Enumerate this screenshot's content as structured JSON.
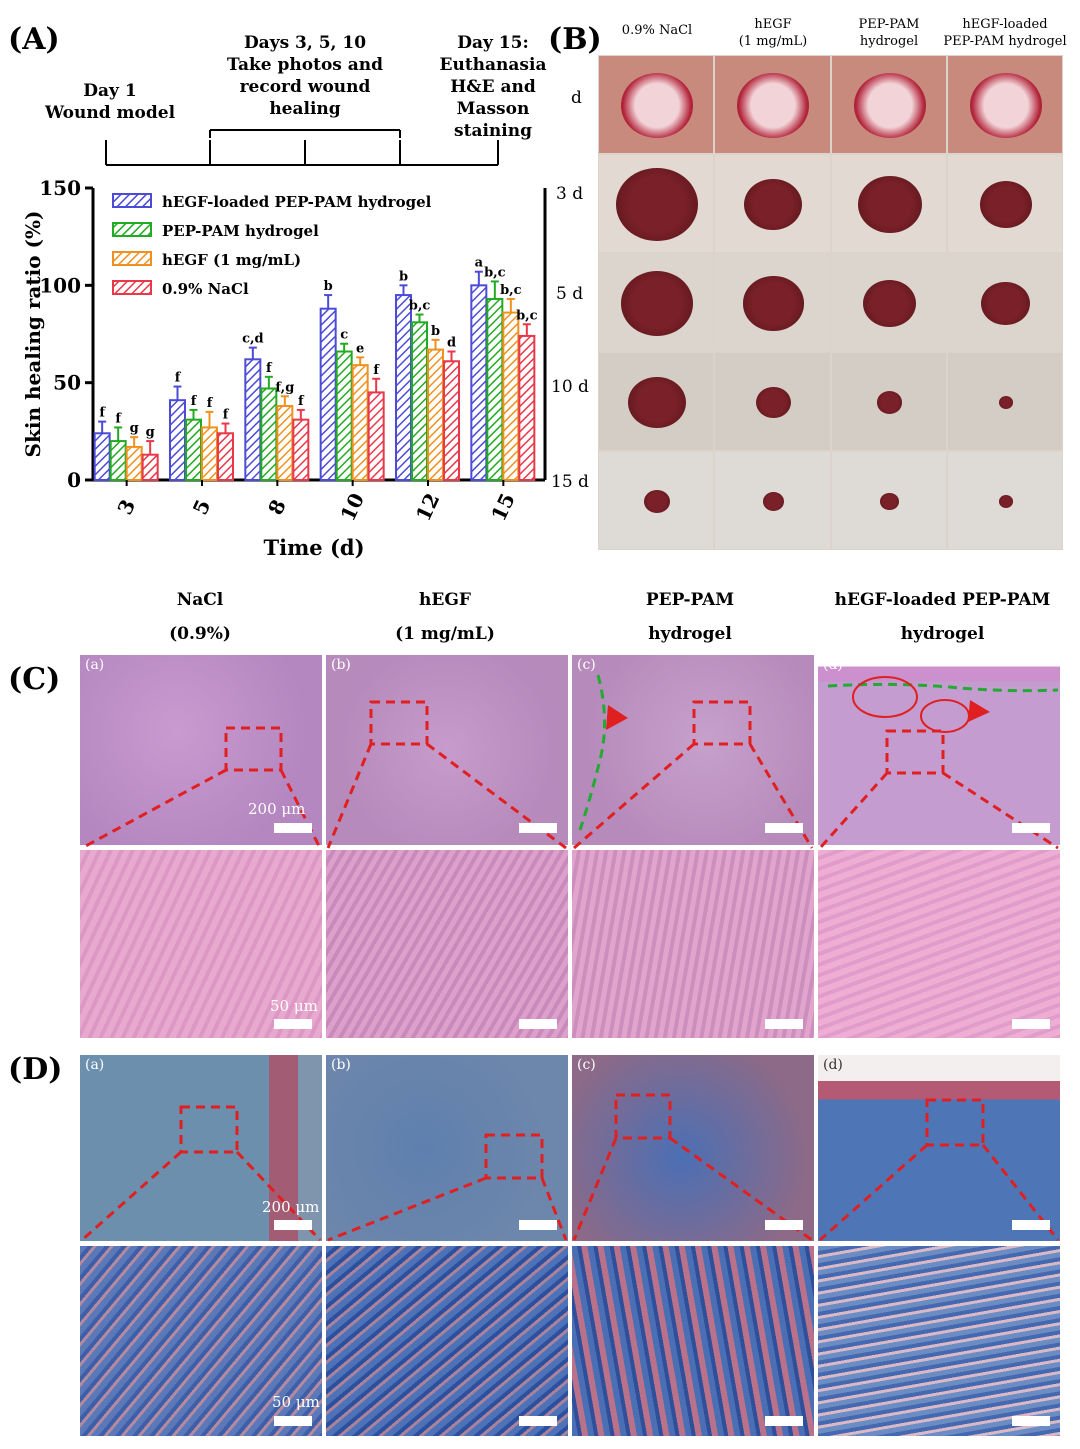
{
  "panel_labels": {
    "a": "(A)",
    "b": "(B)",
    "c": "(C)",
    "d": "(D)"
  },
  "timeline": {
    "day1": [
      "Day 1",
      "Wound model"
    ],
    "days_mid": [
      "Days 3, 5, 10",
      "Take photos and",
      "record wound",
      "healing"
    ],
    "day15": [
      "Day 15:",
      "Euthanasia",
      "H&E and",
      "Masson staining"
    ]
  },
  "chart_data": {
    "type": "bar",
    "xlabel": "Time (d)",
    "ylabel": "Skin healing ratio (%)",
    "ylim": [
      0,
      150
    ],
    "yticks": [
      "0",
      "50",
      "100",
      "150"
    ],
    "categories": [
      "3",
      "5",
      "8",
      "10",
      "12",
      "15"
    ],
    "series": [
      {
        "name": "hEGF-loaded PEP-PAM hydrogel",
        "color": "#4b4bd8",
        "values": [
          24,
          41,
          62,
          88,
          95,
          100
        ],
        "errors": [
          6,
          7,
          6,
          7,
          5,
          7
        ],
        "letters": [
          "f",
          "f",
          "c,d",
          "b",
          "b",
          "a"
        ]
      },
      {
        "name": "PEP-PAM hydrogel",
        "color": "#22aa22",
        "values": [
          20,
          31,
          47,
          66,
          81,
          93
        ],
        "errors": [
          7,
          5,
          6,
          4,
          4,
          9
        ],
        "letters": [
          "f",
          "f",
          "f",
          "c",
          "b,c",
          "b,c"
        ]
      },
      {
        "name": "hEGF (1 mg/mL)",
        "color": "#f0901e",
        "values": [
          17,
          27,
          38,
          59,
          67,
          86
        ],
        "errors": [
          5,
          8,
          5,
          4,
          5,
          7
        ],
        "letters": [
          "g",
          "f",
          "f,g",
          "e",
          "b",
          "b,c"
        ]
      },
      {
        "name": "0.9%  NaCl",
        "color": "#e8384a",
        "values": [
          13,
          24,
          31,
          45,
          61,
          74
        ],
        "errors": [
          7,
          5,
          5,
          7,
          5,
          6
        ],
        "letters": [
          "g",
          "f",
          "f",
          "f",
          "d",
          "b,c"
        ]
      }
    ]
  },
  "panel_b": {
    "columns": [
      [
        "0.9% NaCl"
      ],
      [
        "hEGF",
        "(1 mg/mL)"
      ],
      [
        "PEP-PAM",
        "hydrogel"
      ],
      [
        "hEGF-loaded",
        "PEP-PAM hydrogel"
      ]
    ],
    "rows": [
      "d",
      "3 d",
      "5 d",
      "10 d",
      "15 d"
    ]
  },
  "panel_c": {
    "headers": [
      [
        "NaCl",
        "(0.9%)"
      ],
      [
        "hEGF",
        "(1 mg/mL)"
      ],
      [
        "PEP-PAM",
        "hydrogel"
      ],
      [
        "hEGF-loaded PEP-PAM",
        "hydrogel"
      ]
    ],
    "subs": [
      "(a)",
      "(b)",
      "(c)",
      "(d)"
    ],
    "scale_top": "200 μm",
    "scale_bottom": "50 μm"
  },
  "panel_d": {
    "subs": [
      "(a)",
      "(b)",
      "(c)",
      "(d)"
    ],
    "scale_top": "200 μm",
    "scale_bottom": "50 μm"
  }
}
